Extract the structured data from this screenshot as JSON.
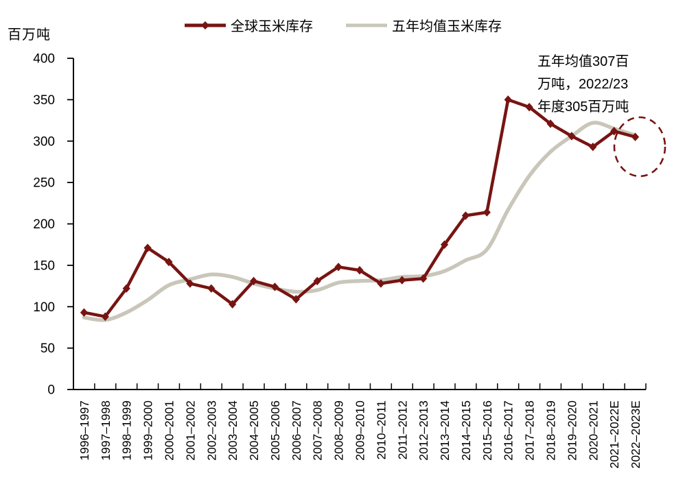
{
  "chart_data": {
    "type": "line",
    "unit": "百万吨",
    "categories": [
      "1996–1997",
      "1997–1998",
      "1998–1999",
      "1999–2000",
      "2000–2001",
      "2001–2002",
      "2002–2003",
      "2003–2004",
      "2004–2005",
      "2005–2006",
      "2006–2007",
      "2007–2008",
      "2008–2009",
      "2009–2010",
      "2010–2011",
      "2011–2012",
      "2012–2013",
      "2013–2014",
      "2014–2015",
      "2015–2016",
      "2016–2017",
      "2017–2018",
      "2018–2019",
      "2019–2020",
      "2020–2021",
      "2021–2022E",
      "2022–2023E"
    ],
    "series": [
      {
        "name": "全球玉米库存",
        "color": "#771412",
        "marker": "diamond",
        "smooth": false,
        "values": [
          93,
          88,
          122,
          171,
          154,
          128,
          122,
          103,
          131,
          124,
          109,
          131,
          148,
          144,
          128,
          132,
          134,
          175,
          210,
          214,
          350,
          341,
          321,
          306,
          293,
          312,
          305
        ]
      },
      {
        "name": "五年均值玉米库存",
        "color": "#c9c6ba",
        "marker": "none",
        "smooth": true,
        "values": [
          87,
          84,
          93,
          108,
          126,
          133,
          139,
          136,
          128,
          122,
          118,
          120,
          129,
          131,
          132,
          136,
          137,
          143,
          156,
          169,
          217,
          258,
          287,
          306,
          322,
          315,
          307
        ]
      }
    ],
    "ylim": [
      0,
      400
    ],
    "y_ticks": [
      0,
      50,
      100,
      150,
      200,
      250,
      300,
      350,
      400
    ],
    "grid": false,
    "legend_position": "top-center",
    "annotation": {
      "lines": [
        "五年均值307百",
        "万吨，2022/23",
        "年度305百万吨"
      ],
      "values_referenced": {
        "five_year_average": 307,
        "year_2022_23": 305
      }
    },
    "highlight": {
      "shape": "dashed-ellipse",
      "color": "#771412",
      "around": "2022–2023E data point"
    }
  }
}
